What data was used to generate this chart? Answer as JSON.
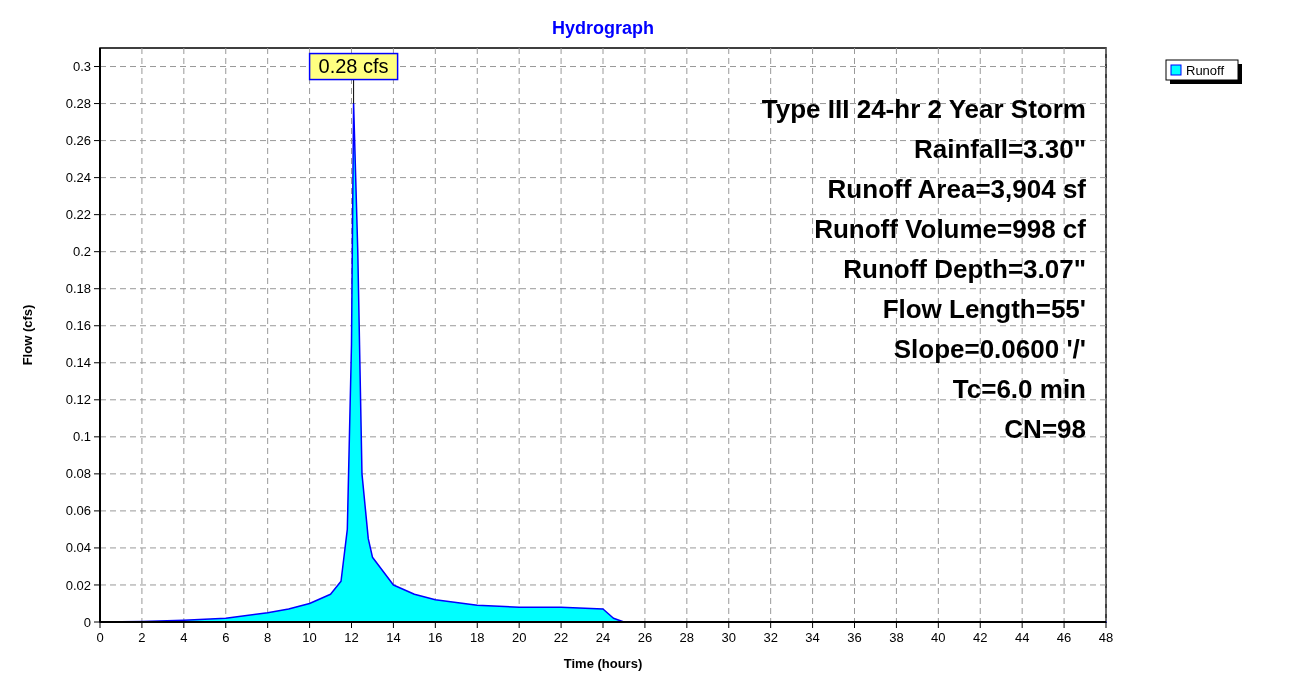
{
  "chart_data": {
    "type": "area",
    "title": "Hydrograph",
    "xlabel": "Time  (hours)",
    "ylabel": "Flow  (cfs)",
    "x": [
      0,
      2,
      4,
      6,
      8,
      9,
      10,
      11,
      11.5,
      11.8,
      12,
      12.1,
      12.3,
      12.5,
      12.8,
      13,
      14,
      15,
      16,
      18,
      20,
      22,
      24,
      24.5,
      25,
      48
    ],
    "series": [
      {
        "name": "Runoff",
        "color": "#00ffff",
        "values": [
          0,
          0.0003,
          0.001,
          0.002,
          0.005,
          0.007,
          0.01,
          0.015,
          0.022,
          0.05,
          0.15,
          0.28,
          0.2,
          0.08,
          0.045,
          0.035,
          0.02,
          0.015,
          0.012,
          0.009,
          0.008,
          0.008,
          0.007,
          0.002,
          0,
          0
        ]
      }
    ],
    "xlim": [
      0,
      48
    ],
    "ylim": [
      0,
      0.31
    ],
    "xticks": [
      0,
      2,
      4,
      6,
      8,
      10,
      12,
      14,
      16,
      18,
      20,
      22,
      24,
      26,
      28,
      30,
      32,
      34,
      36,
      38,
      40,
      42,
      44,
      46,
      48
    ],
    "yticks": [
      0,
      0.02,
      0.04,
      0.06,
      0.08,
      {
        "value": 0.1,
        "label": "0.1"
      },
      0.12,
      0.14,
      0.16,
      0.18,
      {
        "value": 0.2,
        "label": "0.2"
      },
      0.22,
      0.24,
      0.26,
      0.28,
      {
        "value": 0.3,
        "label": "0.3"
      }
    ],
    "grid": true,
    "legend": "top right",
    "annotations": [
      {
        "text": "0.28 cfs",
        "x": 12.1,
        "y": 0.28
      },
      "Type III 24-hr 2 Year Storm",
      "Rainfall=3.30\"",
      "Runoff Area=3,904 sf",
      "Runoff Volume=998 cf",
      "Runoff Depth=3.07\"",
      "Flow Length=55'",
      "Slope=0.0600 '/'",
      "Tc=6.0 min",
      "CN=98"
    ]
  }
}
